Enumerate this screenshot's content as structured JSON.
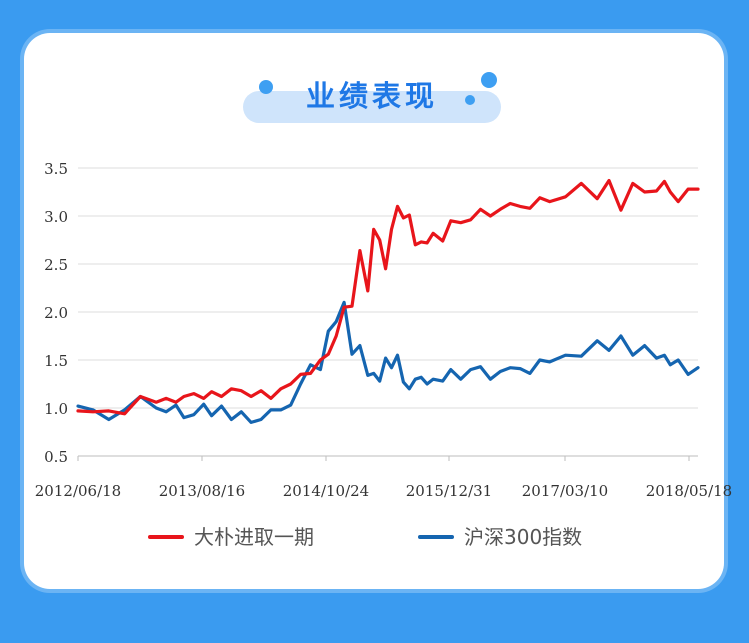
{
  "header": {
    "title": "业绩表现"
  },
  "colors": {
    "fund": "#e8151b",
    "index": "#1565b0",
    "accent": "#1f78e6"
  },
  "chart_data": {
    "type": "line",
    "title": "",
    "xlabel": "",
    "ylabel": "",
    "ylim": [
      0.5,
      3.5
    ],
    "yticks": [
      "0.5",
      "1.0",
      "1.5",
      "2.0",
      "2.5",
      "3.0",
      "3.5"
    ],
    "x_tick_labels": [
      "2012/06/18",
      "2013/08/16",
      "2014/10/24",
      "2015/12/31",
      "2017/03/10",
      "2018/05/18"
    ],
    "grid": "horizontal",
    "legend_position": "bottom",
    "series": [
      {
        "name": "大朴进取一期",
        "color": "#e8151b",
        "x": [
          "2012/06/18",
          "2012/08/10",
          "2012/10/05",
          "2012/11/30",
          "2013/01/25",
          "2013/03/22",
          "2013/04/26",
          "2013/05/31",
          "2013/06/28",
          "2013/08/02",
          "2013/09/06",
          "2013/10/04",
          "2013/11/08",
          "2013/12/13",
          "2014/01/17",
          "2014/02/21",
          "2014/03/28",
          "2014/05/02",
          "2014/06/06",
          "2014/07/11",
          "2014/08/15",
          "2014/09/19",
          "2014/10/24",
          "2014/11/21",
          "2014/12/19",
          "2015/01/16",
          "2015/02/13",
          "2015/03/13",
          "2015/04/10",
          "2015/05/01",
          "2015/05/22",
          "2015/06/12",
          "2015/07/03",
          "2015/07/24",
          "2015/08/14",
          "2015/09/04",
          "2015/09/25",
          "2015/10/16",
          "2015/11/06",
          "2015/11/27",
          "2015/12/31",
          "2016/01/29",
          "2016/03/04",
          "2016/04/08",
          "2016/05/13",
          "2016/06/17",
          "2016/07/22",
          "2016/08/26",
          "2016/09/30",
          "2016/11/04",
          "2016/12/09",
          "2017/01/13",
          "2017/03/10",
          "2017/05/05",
          "2017/06/30",
          "2017/08/11",
          "2017/09/22",
          "2017/11/03",
          "2017/12/15",
          "2018/01/26",
          "2018/02/23",
          "2018/03/16",
          "2018/04/13",
          "2018/05/18",
          "2018/06/22"
        ],
        "values": [
          0.97,
          0.96,
          0.97,
          0.94,
          1.12,
          1.06,
          1.1,
          1.06,
          1.12,
          1.15,
          1.1,
          1.17,
          1.12,
          1.2,
          1.18,
          1.12,
          1.18,
          1.1,
          1.2,
          1.25,
          1.35,
          1.36,
          1.5,
          1.56,
          1.75,
          2.05,
          2.06,
          2.64,
          2.22,
          2.86,
          2.75,
          2.45,
          2.86,
          3.1,
          2.98,
          3.01,
          2.7,
          2.73,
          2.72,
          2.82,
          2.74,
          2.95,
          2.93,
          2.96,
          3.07,
          3.0,
          3.07,
          3.13,
          3.1,
          3.08,
          3.19,
          3.15,
          3.2,
          3.34,
          3.18,
          3.37,
          3.06,
          3.34,
          3.25,
          3.26,
          3.36,
          3.25,
          3.15,
          3.28,
          3.28
        ]
      },
      {
        "name": "沪深300指数",
        "color": "#1565b0",
        "x": [
          "2012/06/18",
          "2012/08/10",
          "2012/10/05",
          "2012/11/30",
          "2013/01/25",
          "2013/03/22",
          "2013/04/26",
          "2013/05/31",
          "2013/06/28",
          "2013/08/02",
          "2013/09/06",
          "2013/10/04",
          "2013/11/08",
          "2013/12/13",
          "2014/01/17",
          "2014/02/21",
          "2014/03/28",
          "2014/05/02",
          "2014/06/06",
          "2014/07/11",
          "2014/08/15",
          "2014/09/19",
          "2014/10/24",
          "2014/11/21",
          "2014/12/19",
          "2015/01/16",
          "2015/02/13",
          "2015/03/13",
          "2015/04/10",
          "2015/05/01",
          "2015/05/22",
          "2015/06/12",
          "2015/07/03",
          "2015/07/24",
          "2015/08/14",
          "2015/09/04",
          "2015/09/25",
          "2015/10/16",
          "2015/11/06",
          "2015/11/27",
          "2015/12/31",
          "2016/01/29",
          "2016/03/04",
          "2016/04/08",
          "2016/05/13",
          "2016/06/17",
          "2016/07/22",
          "2016/08/26",
          "2016/09/30",
          "2016/11/04",
          "2016/12/09",
          "2017/01/13",
          "2017/03/10",
          "2017/05/05",
          "2017/06/30",
          "2017/08/11",
          "2017/09/22",
          "2017/11/03",
          "2017/12/15",
          "2018/01/26",
          "2018/02/23",
          "2018/03/16",
          "2018/04/13",
          "2018/05/18",
          "2018/06/22"
        ],
        "values": [
          1.02,
          0.98,
          0.88,
          0.98,
          1.12,
          1.0,
          0.96,
          1.03,
          0.9,
          0.93,
          1.04,
          0.92,
          1.02,
          0.88,
          0.96,
          0.85,
          0.88,
          0.98,
          0.98,
          1.03,
          1.25,
          1.45,
          1.4,
          1.8,
          1.9,
          2.1,
          1.56,
          1.65,
          1.34,
          1.36,
          1.28,
          1.52,
          1.42,
          1.55,
          1.27,
          1.2,
          1.3,
          1.32,
          1.25,
          1.3,
          1.28,
          1.4,
          1.3,
          1.4,
          1.43,
          1.3,
          1.38,
          1.42,
          1.41,
          1.36,
          1.5,
          1.48,
          1.55,
          1.54,
          1.7,
          1.6,
          1.75,
          1.55,
          1.65,
          1.52,
          1.55,
          1.45,
          1.5,
          1.35,
          1.42
        ]
      }
    ]
  }
}
